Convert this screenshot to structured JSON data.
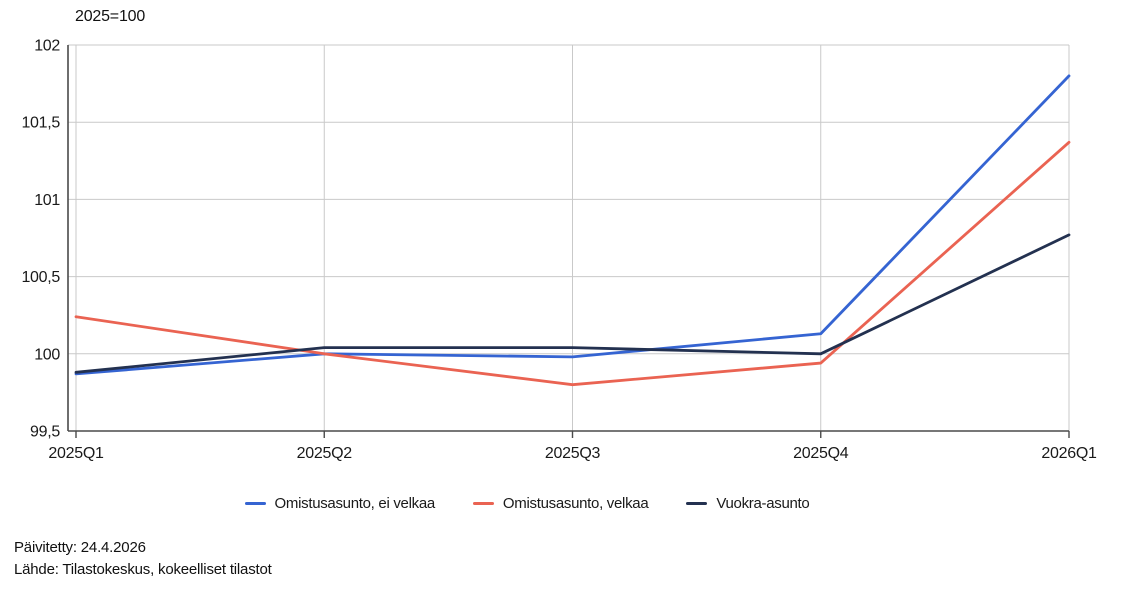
{
  "title": "2025=100",
  "footer": {
    "updated": "Päivitetty: 24.4.2026",
    "source": "Lähde: Tilastokeskus, kokeelliset tilastot"
  },
  "colors": {
    "grid": "#c9c9c9",
    "axis": "#4a4a4a",
    "text": "#1a1a1a"
  },
  "chart_data": {
    "type": "line",
    "title": "2025=100",
    "categories": [
      "2025Q1",
      "2025Q2",
      "2025Q3",
      "2025Q4",
      "2026Q1"
    ],
    "series": [
      {
        "name": "Omistusasunto, ei velkaa",
        "color": "#3564d2",
        "values": [
          99.87,
          100.0,
          99.98,
          100.13,
          101.8
        ]
      },
      {
        "name": "Omistusasunto, velkaa",
        "color": "#ea6352",
        "values": [
          100.24,
          100.0,
          99.8,
          99.94,
          101.37
        ]
      },
      {
        "name": "Vuokra-asunto",
        "color": "#233150",
        "values": [
          99.88,
          100.04,
          100.04,
          100.0,
          100.77
        ]
      }
    ],
    "ylim": [
      99.5,
      102
    ],
    "y_ticks": [
      {
        "value": 99.5,
        "label": "99,5"
      },
      {
        "value": 100,
        "label": "100"
      },
      {
        "value": 100.5,
        "label": "100,5"
      },
      {
        "value": 101,
        "label": "101"
      },
      {
        "value": 101.5,
        "label": "101,5"
      },
      {
        "value": 102,
        "label": "102"
      }
    ],
    "grid": true,
    "legend_position": "bottom"
  }
}
